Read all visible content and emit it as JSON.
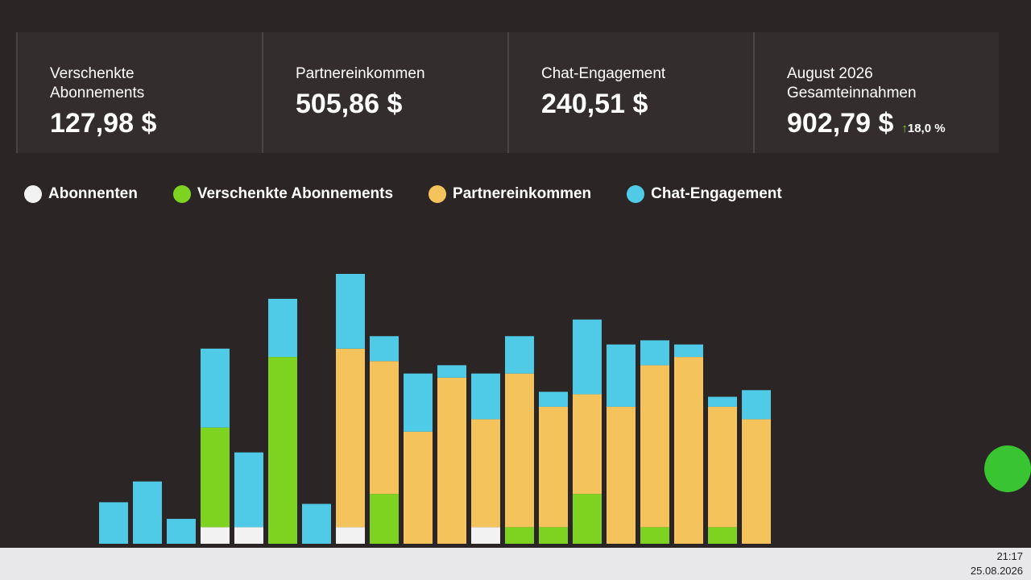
{
  "stats": [
    {
      "label": "Verschenkte Abonnements",
      "value": "127,98 $"
    },
    {
      "label": "Partnereinkommen",
      "value": "505,86 $"
    },
    {
      "label": "Chat-Engagement",
      "value": "240,51 $"
    },
    {
      "label": "August 2026 Gesamteinnahmen",
      "value": "902,79 $",
      "change": "18,0 %"
    }
  ],
  "chart_data": {
    "type": "bar",
    "stacked": true,
    "categories": [
      null,
      null,
      null,
      null,
      null,
      null,
      null,
      null,
      null,
      null,
      null,
      null,
      null,
      null,
      null,
      null,
      null,
      null,
      null,
      null
    ],
    "series": [
      {
        "name": "Abonnenten",
        "color": "#f2f2f2",
        "values": [
          0,
          0,
          0,
          20,
          20,
          0,
          0,
          20,
          0,
          0,
          0,
          20,
          0,
          0,
          0,
          0,
          0,
          0,
          0,
          0
        ]
      },
      {
        "name": "Verschenkte Abonnements",
        "color": "#7ed321",
        "values": [
          0,
          0,
          0,
          120,
          0,
          225,
          0,
          0,
          60,
          0,
          0,
          0,
          20,
          20,
          60,
          0,
          20,
          0,
          20,
          0
        ]
      },
      {
        "name": "Partnereinkommen",
        "color": "#f5c35c",
        "values": [
          0,
          0,
          0,
          0,
          0,
          0,
          0,
          215,
          160,
          135,
          200,
          130,
          185,
          145,
          120,
          165,
          195,
          225,
          145,
          150
        ]
      },
      {
        "name": "Chat-Engagement",
        "color": "#4fcbe8",
        "values": [
          50,
          75,
          30,
          95,
          90,
          70,
          48,
          90,
          30,
          70,
          15,
          55,
          45,
          18,
          90,
          75,
          30,
          15,
          12,
          35
        ]
      }
    ]
  },
  "taskbar": {
    "time": "21:17",
    "date": "25.08.2026"
  }
}
